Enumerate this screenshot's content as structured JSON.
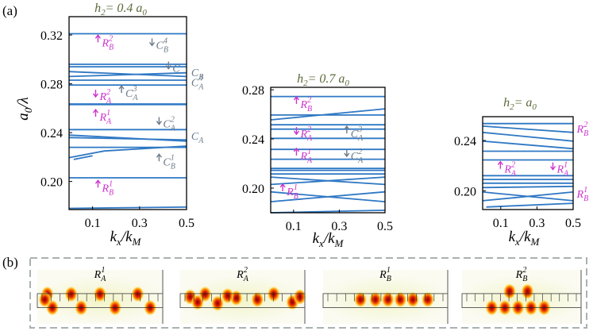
{
  "panel_labels": {
    "a": "(a)",
    "b": "(b)"
  },
  "colors": {
    "band": "#2f78c4",
    "mode_label": "#cc33cc",
    "cc_label": "#6b7b8a",
    "title": "#5b6b3a",
    "axis": "#000000",
    "inset_border": "#a9b1b1"
  },
  "axes": {
    "ylabel": "a",
    "ylabel_sub": "0",
    "ylabel_tail": "/λ",
    "xlabel": "k",
    "xlabel_sub1": "x",
    "xlabel_mid": "/k",
    "xlabel_sub2": "M"
  },
  "chart_data": [
    {
      "type": "line",
      "title": "h2= 0.4 a0",
      "title_parts": {
        "h": "h",
        "h_sub": "2",
        "eq": "= 0.4 a",
        "a_sub": "0"
      },
      "xlim": [
        0,
        0.5
      ],
      "ylim": [
        0.177,
        0.335
      ],
      "xticks": [
        "0.1",
        "0.3",
        "0.5"
      ],
      "xtick_values": [
        0.1,
        0.3,
        0.5
      ],
      "yticks": [
        "0.20",
        "0.24",
        "0.28",
        "0.32"
      ],
      "ytick_values": [
        0.2,
        0.24,
        0.28,
        0.32
      ],
      "bands": [
        [
          [
            0,
            0.178
          ],
          [
            0.5,
            0.179
          ]
        ],
        [
          [
            0,
            0.203
          ],
          [
            0.5,
            0.203
          ]
        ],
        [
          [
            0,
            0.2195
          ],
          [
            0.15,
            0.225
          ],
          [
            0.5,
            0.229
          ]
        ],
        [
          [
            0.02,
            0.218
          ],
          [
            0.1,
            0.221
          ]
        ],
        [
          [
            0,
            0.228
          ],
          [
            0.5,
            0.228
          ]
        ],
        [
          [
            0,
            0.236
          ],
          [
            0.5,
            0.234
          ]
        ],
        [
          [
            0,
            0.238
          ],
          [
            0.5,
            0.233
          ]
        ],
        [
          [
            0,
            0.2425
          ],
          [
            0.5,
            0.2425
          ]
        ],
        [
          [
            0,
            0.263
          ],
          [
            0.5,
            0.263
          ]
        ],
        [
          [
            0,
            0.2635
          ],
          [
            0.5,
            0.2635
          ]
        ],
        [
          [
            0,
            0.279
          ],
          [
            0.5,
            0.279
          ]
        ],
        [
          [
            0,
            0.283
          ],
          [
            0.5,
            0.283
          ]
        ],
        [
          [
            0,
            0.286
          ],
          [
            0.5,
            0.289
          ]
        ],
        [
          [
            0,
            0.29
          ],
          [
            0.5,
            0.286
          ]
        ],
        [
          [
            0,
            0.294
          ],
          [
            0.5,
            0.294
          ]
        ],
        [
          [
            0,
            0.296
          ],
          [
            0.5,
            0.296
          ]
        ],
        [
          [
            0,
            0.321
          ],
          [
            0.5,
            0.321
          ]
        ]
      ],
      "labels": [
        {
          "kind": "mode",
          "arrow": "up",
          "base": "R",
          "sub": "B",
          "sup": "2",
          "k": 0.14,
          "y": 0.314
        },
        {
          "kind": "mode",
          "arrow": "down",
          "base": "R",
          "sub": "A",
          "sup": "2",
          "k": 0.13,
          "y": 0.27
        },
        {
          "kind": "mode",
          "arrow": "up",
          "base": "R",
          "sub": "A",
          "sup": "1",
          "k": 0.13,
          "y": 0.253
        },
        {
          "kind": "mode",
          "arrow": "up",
          "base": "R",
          "sub": "B",
          "sup": "1",
          "k": 0.14,
          "y": 0.195
        },
        {
          "kind": "cc",
          "arrow": "down",
          "base": "C",
          "sub": "B",
          "sup": "4",
          "k": 0.37,
          "y": 0.312
        },
        {
          "kind": "cc",
          "arrow": "down",
          "base": "C",
          "sub": "",
          "sup": "",
          "k": 0.44,
          "y": 0.293
        },
        {
          "kind": "cc",
          "arrow": "none",
          "base": "C",
          "sub": "B",
          "sup": "",
          "k": 0.52,
          "y": 0.2895
        },
        {
          "kind": "cc",
          "arrow": "none",
          "base": "C",
          "sub": "A",
          "sup": "4",
          "k": 0.52,
          "y": 0.2815
        },
        {
          "kind": "cc",
          "arrow": "up",
          "base": "C",
          "sub": "A",
          "sup": "3",
          "k": 0.24,
          "y": 0.2725
        },
        {
          "kind": "cc",
          "arrow": "down",
          "base": "C",
          "sub": "A",
          "sup": "2",
          "k": 0.4,
          "y": 0.2475
        },
        {
          "kind": "cc",
          "arrow": "none",
          "base": "C",
          "sub": "A",
          "sup": "",
          "k": 0.52,
          "y": 0.2375
        },
        {
          "kind": "cc",
          "arrow": "up",
          "base": "C",
          "sub": "B",
          "sup": "1",
          "k": 0.4,
          "y": 0.2165
        }
      ]
    },
    {
      "type": "line",
      "title": "h2= 0.7 a0",
      "title_parts": {
        "h": "h",
        "h_sub": "2",
        "eq": "= 0.7 a",
        "a_sub": "0"
      },
      "xlim": [
        0,
        0.5
      ],
      "ylim": [
        0.18,
        0.282
      ],
      "xticks": [
        "0.1",
        "0.3",
        "0.5"
      ],
      "xtick_values": [
        0.1,
        0.3,
        0.5
      ],
      "yticks": [
        "0.20",
        "0.24",
        "0.28"
      ],
      "ytick_values": [
        0.2,
        0.24,
        0.28
      ],
      "bands": [
        [
          [
            0,
            0.18
          ],
          [
            0.5,
            0.182
          ]
        ],
        [
          [
            0,
            0.189
          ],
          [
            0.5,
            0.197
          ]
        ],
        [
          [
            0,
            0.197
          ],
          [
            0.5,
            0.189
          ]
        ],
        [
          [
            0,
            0.203
          ],
          [
            0.5,
            0.209
          ]
        ],
        [
          [
            0,
            0.209
          ],
          [
            0.5,
            0.203
          ]
        ],
        [
          [
            0,
            0.2115
          ],
          [
            0.5,
            0.2115
          ]
        ],
        [
          [
            0,
            0.2145
          ],
          [
            0.5,
            0.2145
          ]
        ],
        [
          [
            0,
            0.216
          ],
          [
            0.5,
            0.216
          ]
        ],
        [
          [
            0,
            0.2235
          ],
          [
            0.5,
            0.2235
          ]
        ],
        [
          [
            0,
            0.2315
          ],
          [
            0.5,
            0.2315
          ]
        ],
        [
          [
            0,
            0.2405
          ],
          [
            0.5,
            0.2405
          ]
        ],
        [
          [
            0,
            0.248
          ],
          [
            0.5,
            0.248
          ]
        ],
        [
          [
            0,
            0.2515
          ],
          [
            0.5,
            0.2515
          ]
        ],
        [
          [
            0,
            0.2555
          ],
          [
            0.5,
            0.2645
          ]
        ],
        [
          [
            0,
            0.2595
          ],
          [
            0.5,
            0.2595
          ]
        ],
        [
          [
            0,
            0.2745
          ],
          [
            0.5,
            0.2745
          ]
        ]
      ],
      "labels": [
        {
          "kind": "mode",
          "arrow": "up",
          "base": "R",
          "sub": "B",
          "sup": "2",
          "k": 0.13,
          "y": 0.2685
        },
        {
          "kind": "mode",
          "arrow": "down",
          "base": "R",
          "sub": "A",
          "sup": "2",
          "k": 0.13,
          "y": 0.2445
        },
        {
          "kind": "mode",
          "arrow": "up",
          "base": "R",
          "sub": "A",
          "sup": "1",
          "k": 0.13,
          "y": 0.2265
        },
        {
          "kind": "mode",
          "arrow": "up",
          "base": "R",
          "sub": "B",
          "sup": "1",
          "k": 0.07,
          "y": 0.1975
        },
        {
          "kind": "cc",
          "arrow": "up",
          "base": "C",
          "sub": "A",
          "sup": "3",
          "k": 0.35,
          "y": 0.2445
        },
        {
          "kind": "cc",
          "arrow": "down",
          "base": "C",
          "sub": "A",
          "sup": "2",
          "k": 0.35,
          "y": 0.2265
        }
      ]
    },
    {
      "type": "line",
      "title": "h2= a0",
      "title_parts": {
        "h": "h",
        "h_sub": "2",
        "eq": "= a",
        "a_sub": "0"
      },
      "xlim": [
        0,
        0.5
      ],
      "ylim": [
        0.185,
        0.259
      ],
      "xticks": [
        "0.1",
        "0.3",
        "0.5"
      ],
      "xtick_values": [
        0.1,
        0.3,
        0.5
      ],
      "yticks": [
        "0.20",
        "0.24"
      ],
      "ytick_values": [
        0.2,
        0.24
      ],
      "bands": [
        [
          [
            0.02,
            0.187
          ],
          [
            0.5,
            0.19
          ]
        ],
        [
          [
            0,
            0.192
          ],
          [
            0.5,
            0.199
          ]
        ],
        [
          [
            0,
            0.199
          ],
          [
            0.5,
            0.192
          ]
        ],
        [
          [
            0,
            0.2025
          ],
          [
            0.5,
            0.2035
          ]
        ],
        [
          [
            0,
            0.206
          ],
          [
            0.5,
            0.206
          ]
        ],
        [
          [
            0,
            0.209
          ],
          [
            0.5,
            0.209
          ]
        ],
        [
          [
            0,
            0.212
          ],
          [
            0.5,
            0.212
          ]
        ],
        [
          [
            0,
            0.2245
          ],
          [
            0.5,
            0.2245
          ]
        ],
        [
          [
            0,
            0.2315
          ],
          [
            0.5,
            0.2315
          ]
        ],
        [
          [
            0,
            0.2395
          ],
          [
            0.5,
            0.2335
          ]
        ],
        [
          [
            0,
            0.2465
          ],
          [
            0.5,
            0.2395
          ]
        ],
        [
          [
            0,
            0.2515
          ],
          [
            0.5,
            0.2465
          ]
        ],
        [
          [
            0,
            0.2535
          ],
          [
            0.5,
            0.2535
          ]
        ]
      ],
      "labels": [
        {
          "kind": "mode",
          "arrow": "none",
          "base": "R",
          "sub": "B",
          "sup": "2",
          "k": 0.52,
          "y": 0.2495
        },
        {
          "kind": "mode",
          "arrow": "up",
          "base": "R",
          "sub": "A",
          "sup": "2",
          "k": 0.12,
          "y": 0.2175
        },
        {
          "kind": "mode",
          "arrow": "down",
          "base": "R",
          "sub": "A",
          "sup": "1",
          "k": 0.41,
          "y": 0.2175
        },
        {
          "kind": "mode",
          "arrow": "none",
          "base": "R",
          "sub": "B",
          "sup": "1",
          "k": 0.52,
          "y": 0.1975
        }
      ]
    }
  ],
  "field_maps": [
    {
      "base": "R",
      "sub": "A",
      "sup": "1"
    },
    {
      "base": "R",
      "sub": "A",
      "sup": "2"
    },
    {
      "base": "R",
      "sub": "B",
      "sup": "1"
    },
    {
      "base": "R",
      "sub": "B",
      "sup": "2"
    }
  ]
}
